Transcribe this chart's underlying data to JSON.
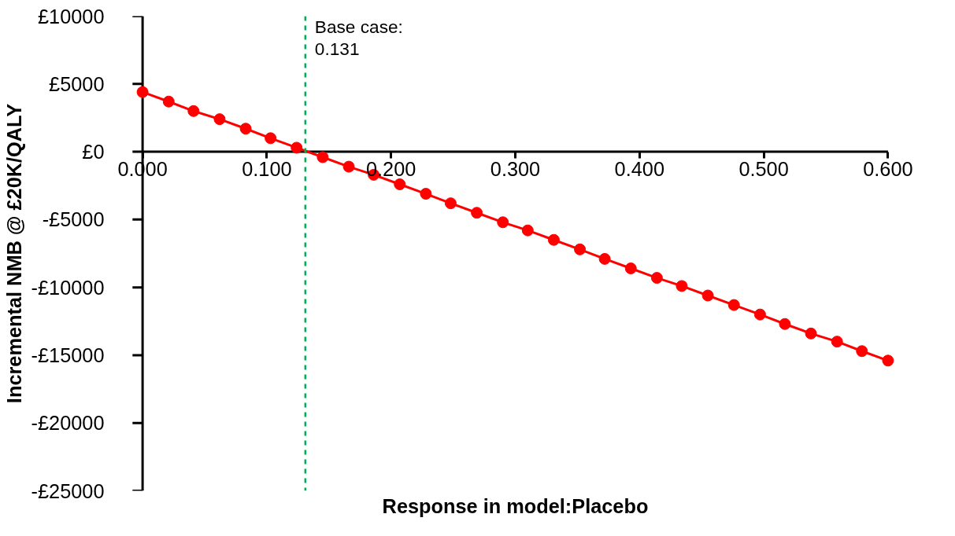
{
  "chart_data": {
    "type": "line",
    "xlabel": "Response in model:Placebo",
    "ylabel": "Incremental NMB @ £20K/QALY",
    "x": [
      0,
      0.021,
      0.041,
      0.062,
      0.083,
      0.103,
      0.124,
      0.145,
      0.166,
      0.186,
      0.207,
      0.228,
      0.248,
      0.269,
      0.29,
      0.31,
      0.331,
      0.352,
      0.372,
      0.393,
      0.414,
      0.434,
      0.455,
      0.476,
      0.497,
      0.517,
      0.538,
      0.559,
      0.579,
      0.6
    ],
    "series": [
      {
        "color": "#ff0000",
        "values": [
          4400,
          3700,
          3000,
          2400,
          1700,
          1000,
          300,
          -400,
          -1100,
          -1700,
          -2400,
          -3100,
          -3800,
          -4500,
          -5200,
          -5800,
          -6500,
          -7200,
          -7900,
          -8600,
          -9300,
          -9900,
          -10600,
          -11300,
          -12000,
          -12700,
          -13400,
          -14000,
          -14700,
          -15400
        ]
      }
    ],
    "marker": "circle",
    "line_style": "solid",
    "grid": false,
    "xlim": [
      0,
      0.6
    ],
    "xticks": [
      {
        "value": 0,
        "label": "0.000"
      },
      {
        "value": 0.1,
        "label": "0.100"
      },
      {
        "value": 0.2,
        "label": "0.200"
      },
      {
        "value": 0.3,
        "label": "0.300"
      },
      {
        "value": 0.4,
        "label": "0.400"
      },
      {
        "value": 0.5,
        "label": "0.500"
      },
      {
        "value": 0.6,
        "label": "0.600"
      }
    ],
    "ylim": [
      -25000,
      10000
    ],
    "yticks": [
      {
        "value": 10000,
        "label": "£10000"
      },
      {
        "value": 5000,
        "label": "£5000"
      },
      {
        "value": 0,
        "label": "£0"
      },
      {
        "value": -5000,
        "label": "-£5000"
      },
      {
        "value": -10000,
        "label": "-£10000"
      },
      {
        "value": -15000,
        "label": "-£15000"
      },
      {
        "value": -20000,
        "label": "-£20000"
      },
      {
        "value": -25000,
        "label": "-£25000"
      }
    ],
    "ref_lines": [
      {
        "axis": "x",
        "value": 0.131,
        "label": "Base case:\n0.131",
        "color": "#00b050",
        "line_style": "dashed"
      }
    ]
  }
}
